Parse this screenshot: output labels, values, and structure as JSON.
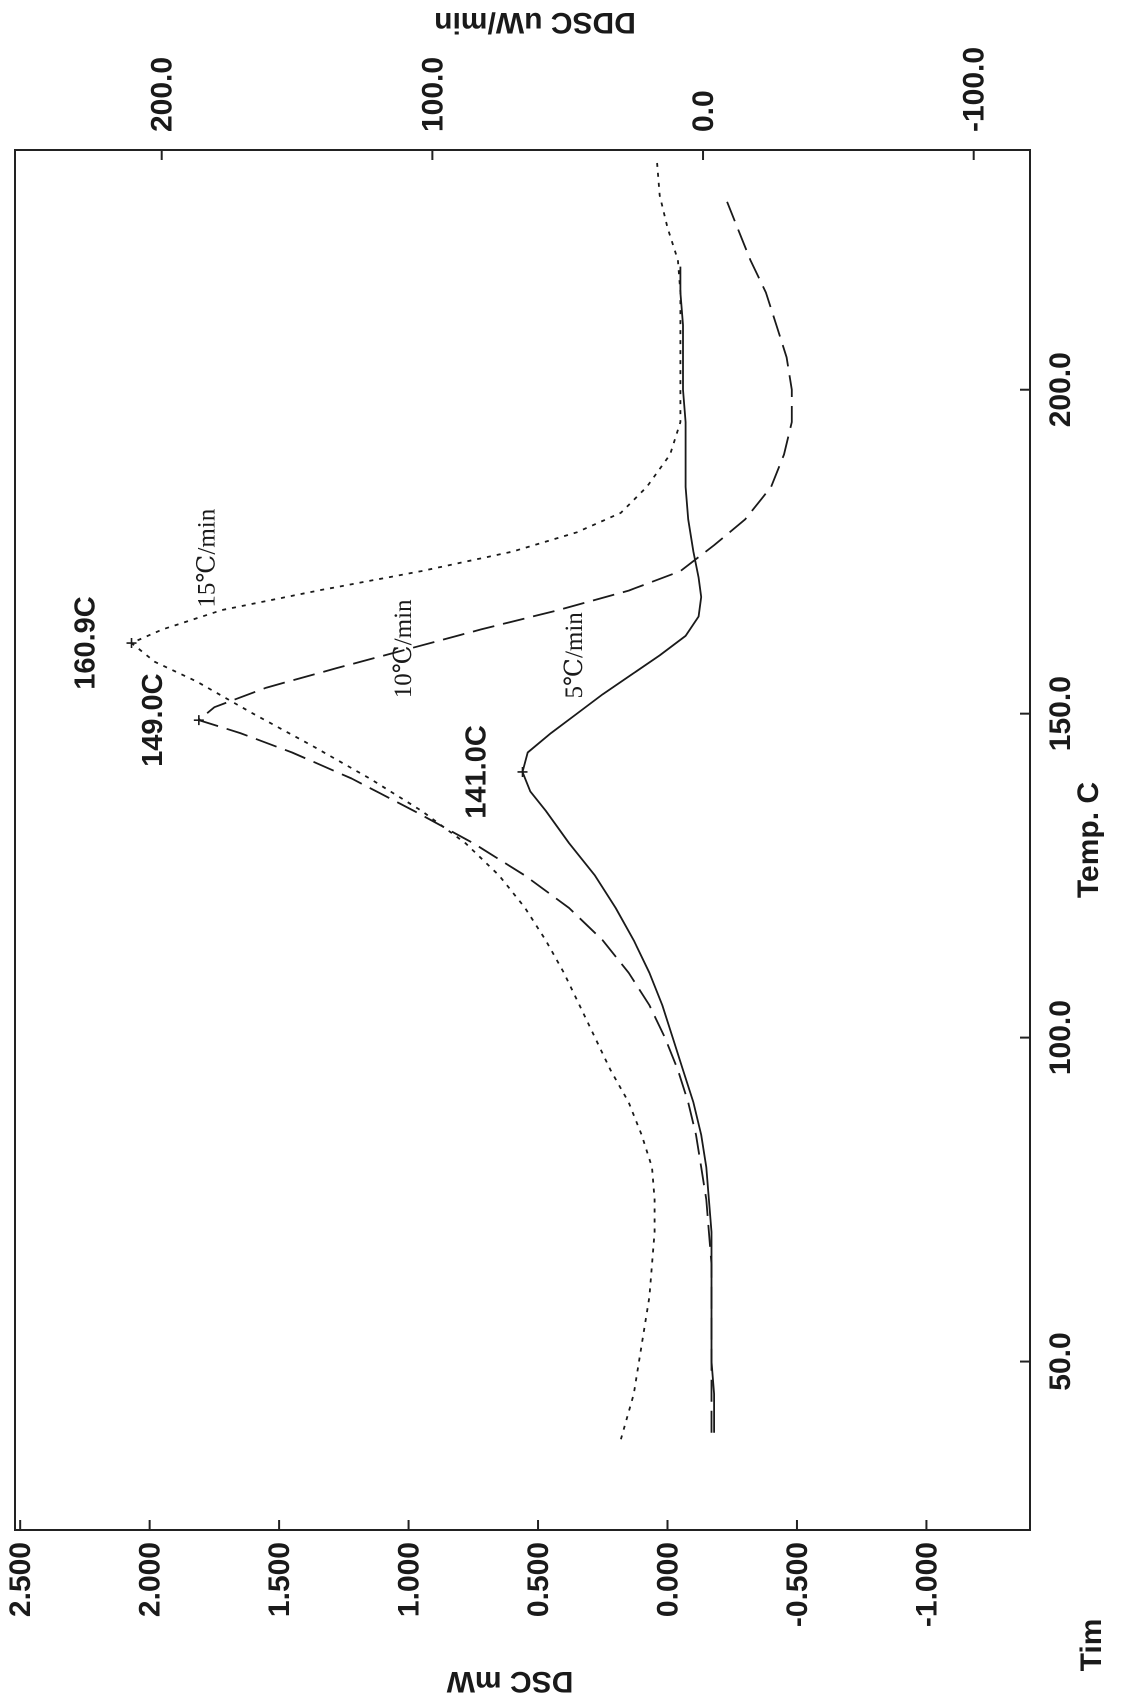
{
  "chart_data": {
    "type": "line",
    "title": "",
    "xlabel": "Temp. C",
    "ylabel": "DSC mW",
    "y2label": "DDSC uW/min",
    "corner_label": "Tim",
    "xlim": [
      24,
      237
    ],
    "ylim": [
      -1.4,
      2.52
    ],
    "y2lim": [
      -120.8,
      254.2
    ],
    "x_ticks": [
      "50.0",
      "100.0",
      "150.0",
      "200.0"
    ],
    "y_ticks": [
      "2.500",
      "2.000",
      "1.500",
      "1.000",
      "0.500",
      "0.000",
      "-0.500",
      "-1.000"
    ],
    "y2_ticks": [
      "200.0",
      "100.0",
      "0.0",
      "-100.0"
    ],
    "series": [
      {
        "name": "5℃/min",
        "style": "solid",
        "color": "#1a1a1a",
        "points": [
          [
            39,
            -0.18
          ],
          [
            45,
            -0.18
          ],
          [
            50,
            -0.17
          ],
          [
            55,
            -0.17
          ],
          [
            60,
            -0.17
          ],
          [
            65,
            -0.17
          ],
          [
            70,
            -0.17
          ],
          [
            75,
            -0.16
          ],
          [
            80,
            -0.15
          ],
          [
            85,
            -0.13
          ],
          [
            90,
            -0.1
          ],
          [
            95,
            -0.06
          ],
          [
            100,
            -0.02
          ],
          [
            105,
            0.02
          ],
          [
            110,
            0.07
          ],
          [
            115,
            0.13
          ],
          [
            120,
            0.2
          ],
          [
            125,
            0.28
          ],
          [
            130,
            0.38
          ],
          [
            135,
            0.47
          ],
          [
            138,
            0.53
          ],
          [
            141,
            0.56
          ],
          [
            144,
            0.54
          ],
          [
            147,
            0.45
          ],
          [
            150,
            0.35
          ],
          [
            153,
            0.25
          ],
          [
            156,
            0.14
          ],
          [
            159,
            0.03
          ],
          [
            162,
            -0.07
          ],
          [
            165,
            -0.12
          ],
          [
            168,
            -0.13
          ],
          [
            171,
            -0.12
          ],
          [
            175,
            -0.1
          ],
          [
            180,
            -0.08
          ],
          [
            185,
            -0.07
          ],
          [
            190,
            -0.07
          ],
          [
            195,
            -0.07
          ],
          [
            200,
            -0.06
          ],
          [
            205,
            -0.06
          ],
          [
            210,
            -0.06
          ],
          [
            215,
            -0.05
          ],
          [
            219,
            -0.05
          ]
        ]
      },
      {
        "name": "10℃/min",
        "style": "dashed",
        "color": "#1a1a1a",
        "points": [
          [
            39,
            -0.17
          ],
          [
            45,
            -0.17
          ],
          [
            50,
            -0.17
          ],
          [
            55,
            -0.17
          ],
          [
            60,
            -0.17
          ],
          [
            65,
            -0.17
          ],
          [
            70,
            -0.16
          ],
          [
            75,
            -0.15
          ],
          [
            80,
            -0.13
          ],
          [
            85,
            -0.11
          ],
          [
            90,
            -0.08
          ],
          [
            95,
            -0.04
          ],
          [
            100,
            0.01
          ],
          [
            105,
            0.07
          ],
          [
            110,
            0.15
          ],
          [
            115,
            0.25
          ],
          [
            120,
            0.38
          ],
          [
            125,
            0.55
          ],
          [
            130,
            0.75
          ],
          [
            135,
            0.98
          ],
          [
            140,
            1.22
          ],
          [
            144,
            1.45
          ],
          [
            147,
            1.65
          ],
          [
            149,
            1.81
          ],
          [
            151,
            1.75
          ],
          [
            154,
            1.55
          ],
          [
            157,
            1.28
          ],
          [
            160,
            1.0
          ],
          [
            163,
            0.72
          ],
          [
            166,
            0.42
          ],
          [
            169,
            0.15
          ],
          [
            172,
            -0.05
          ],
          [
            176,
            -0.18
          ],
          [
            180,
            -0.3
          ],
          [
            185,
            -0.4
          ],
          [
            190,
            -0.45
          ],
          [
            195,
            -0.48
          ],
          [
            200,
            -0.48
          ],
          [
            205,
            -0.46
          ],
          [
            210,
            -0.42
          ],
          [
            215,
            -0.38
          ],
          [
            220,
            -0.32
          ],
          [
            225,
            -0.27
          ],
          [
            229,
            -0.23
          ]
        ]
      },
      {
        "name": "15℃/min",
        "style": "dotted",
        "color": "#1a1a1a",
        "points": [
          [
            38,
            0.18
          ],
          [
            45,
            0.13
          ],
          [
            50,
            0.11
          ],
          [
            55,
            0.09
          ],
          [
            60,
            0.07
          ],
          [
            65,
            0.06
          ],
          [
            70,
            0.05
          ],
          [
            75,
            0.05
          ],
          [
            80,
            0.06
          ],
          [
            85,
            0.1
          ],
          [
            90,
            0.15
          ],
          [
            95,
            0.22
          ],
          [
            100,
            0.28
          ],
          [
            105,
            0.34
          ],
          [
            110,
            0.4
          ],
          [
            115,
            0.47
          ],
          [
            120,
            0.55
          ],
          [
            125,
            0.65
          ],
          [
            130,
            0.78
          ],
          [
            135,
            0.95
          ],
          [
            140,
            1.15
          ],
          [
            145,
            1.37
          ],
          [
            150,
            1.6
          ],
          [
            155,
            1.82
          ],
          [
            158,
            1.98
          ],
          [
            160.9,
            2.07
          ],
          [
            163,
            1.95
          ],
          [
            166,
            1.72
          ],
          [
            169,
            1.35
          ],
          [
            172,
            0.95
          ],
          [
            175,
            0.6
          ],
          [
            178,
            0.35
          ],
          [
            181,
            0.18
          ],
          [
            185,
            0.08
          ],
          [
            190,
            -0.01
          ],
          [
            195,
            -0.05
          ],
          [
            200,
            -0.05
          ],
          [
            205,
            -0.05
          ],
          [
            210,
            -0.05
          ],
          [
            215,
            -0.05
          ],
          [
            220,
            -0.04
          ],
          [
            225,
            0.0
          ],
          [
            230,
            0.03
          ],
          [
            235,
            0.04
          ]
        ]
      }
    ],
    "peak_labels": [
      {
        "text": "160.9C",
        "x": 160.9,
        "y": 2.07
      },
      {
        "text": "149.0C",
        "x": 149.0,
        "y": 1.81
      },
      {
        "text": "141.0C",
        "x": 141.0,
        "y": 0.56
      }
    ],
    "rate_labels": [
      {
        "text": "15℃/min",
        "x": 174,
        "y": 1.75
      },
      {
        "text": "10℃/min",
        "x": 160,
        "y": 0.99
      },
      {
        "text": "5℃/min",
        "x": 159,
        "y": 0.33
      }
    ],
    "grid": false,
    "orientation": "rotated-90-clockwise"
  }
}
